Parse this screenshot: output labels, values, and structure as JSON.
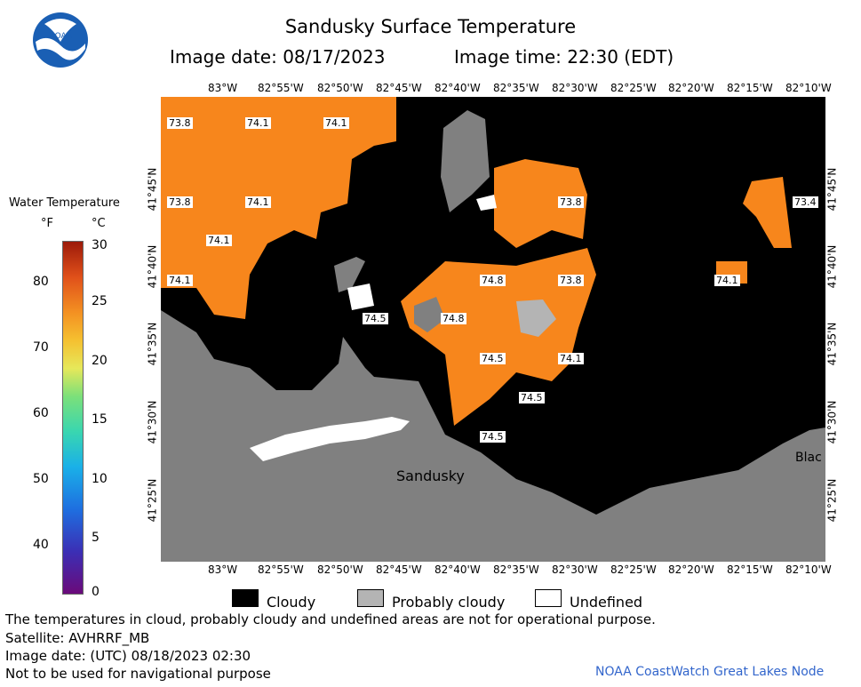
{
  "header": {
    "title": "Sandusky Surface Temperature",
    "image_date": "Image date: 08/17/2023",
    "image_time": "Image time: 22:30 (EDT)",
    "logo_text": "NOAA"
  },
  "legend": {
    "title": "Water Temperature",
    "unit_f": "°F",
    "unit_c": "°C",
    "f_ticks": [
      "80",
      "70",
      "60",
      "50",
      "40"
    ],
    "c_ticks": [
      "30",
      "25",
      "20",
      "15",
      "10",
      "5",
      "0"
    ]
  },
  "axes": {
    "lon_labels": [
      "83°W",
      "82°55'W",
      "82°50'W",
      "82°45'W",
      "82°40'W",
      "82°35'W",
      "82°30'W",
      "82°25'W",
      "82°20'W",
      "82°15'W",
      "82°10'W"
    ],
    "lat_labels": [
      "41°45'N",
      "41°40'N",
      "41°35'N",
      "41°30'N",
      "41°25'N"
    ]
  },
  "map": {
    "temp_labels": [
      "73.8",
      "74.1",
      "74.1",
      "73.8",
      "74.1",
      "74.1",
      "74.1",
      "74.5",
      "74.8",
      "73.8",
      "73.8",
      "74.8",
      "74.5",
      "74.1",
      "74.5",
      "74.5",
      "73.4",
      "74.1"
    ],
    "places": {
      "city": "Sandusky",
      "edge_town": "Blac"
    }
  },
  "key": {
    "cloudy": "Cloudy",
    "probably_cloudy": "Probably cloudy",
    "undefined": "Undefined"
  },
  "footer": {
    "note": "The temperatures in cloud, probably cloudy and undefined areas are not for operational purpose.",
    "satellite": "Satellite: AVHRRF_MB",
    "utc_date": "Image date: (UTC) 08/18/2023  02:30",
    "nav_warning": "Not to be used for navigational purpose",
    "credit": "NOAA CoastWatch Great Lakes Node"
  },
  "colors": {
    "water": "#f7861c",
    "cloud": "#000000",
    "land": "#808080",
    "probably_cloudy": "#b4b4b4",
    "undefined": "#ffffff"
  }
}
